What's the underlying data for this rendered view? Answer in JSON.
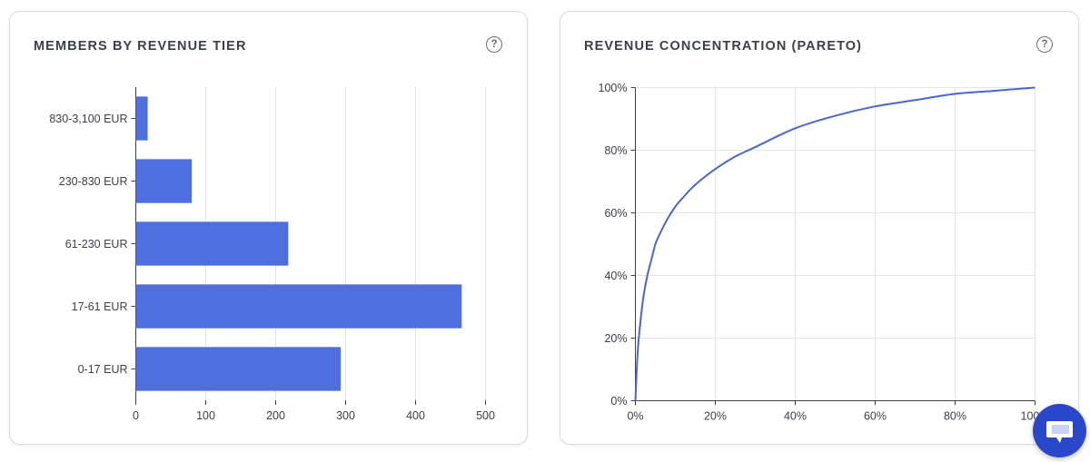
{
  "colors": {
    "bar": "#4f6fdf",
    "line": "#4a66d1",
    "grid": "#e3e5e9",
    "axis": "#3c4048",
    "chat_button": "#2b47c9"
  },
  "left_card": {
    "title": "MEMBERS BY REVENUE TIER",
    "help_icon": "?"
  },
  "right_card": {
    "title": "REVENUE CONCENTRATION (PARETO)",
    "help_icon": "?"
  },
  "chat_button": {
    "icon": "chat-bubble-icon"
  },
  "chart_data": [
    {
      "type": "bar",
      "orientation": "horizontal",
      "title": "MEMBERS BY REVENUE TIER",
      "categories": [
        "830-3,100 EUR",
        "230-830 EUR",
        "61-230 EUR",
        "17-61 EUR",
        "0-17 EUR"
      ],
      "values": [
        17,
        80,
        218,
        466,
        293
      ],
      "xlim": [
        0,
        500
      ],
      "xticks": [
        "0",
        "100",
        "200",
        "300",
        "400",
        "500"
      ],
      "grid": true
    },
    {
      "type": "line",
      "title": "REVENUE CONCENTRATION (PARETO)",
      "x": [
        0,
        0.5,
        1,
        2,
        3,
        4,
        5,
        6,
        8,
        10,
        12,
        15,
        20,
        25,
        30,
        40,
        50,
        60,
        70,
        80,
        90,
        100
      ],
      "y": [
        0,
        14,
        22,
        33,
        40,
        45,
        50,
        53,
        58,
        62,
        65,
        69,
        74,
        78,
        81,
        87,
        91,
        94,
        96,
        98,
        99,
        100
      ],
      "xlim": [
        0,
        100
      ],
      "ylim": [
        0,
        100
      ],
      "xticks": [
        "0%",
        "20%",
        "40%",
        "60%",
        "80%",
        "100%"
      ],
      "yticks": [
        "0%",
        "20%",
        "40%",
        "60%",
        "80%",
        "100%"
      ],
      "grid": true
    }
  ]
}
